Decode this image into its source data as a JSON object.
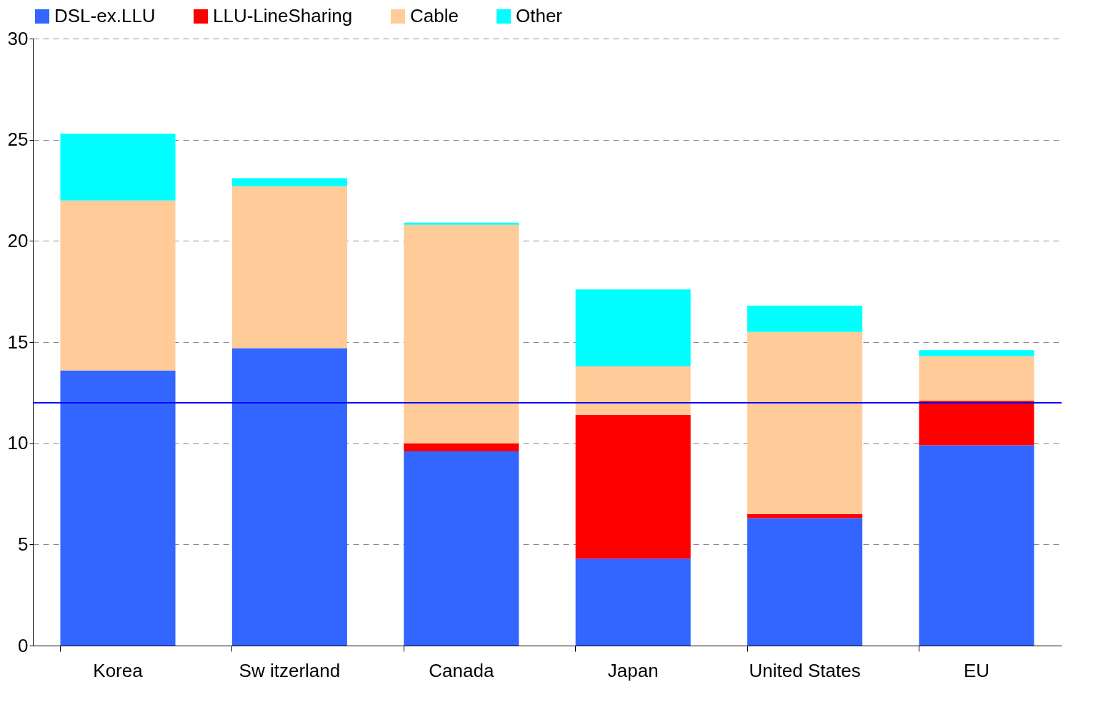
{
  "chart_data": {
    "type": "bar",
    "stacked": true,
    "categories": [
      "Korea",
      "Sw itzerland",
      "Canada",
      "Japan",
      "United States",
      "EU"
    ],
    "series": [
      {
        "name": "DSL-ex.LLU",
        "color": "#3366ff",
        "values": [
          13.6,
          14.7,
          9.6,
          4.3,
          6.3,
          9.9
        ]
      },
      {
        "name": "LLU-LineSharing",
        "color": "#ff0000",
        "values": [
          0,
          0,
          0.4,
          7.1,
          0.2,
          2.2
        ]
      },
      {
        "name": "Cable",
        "color": "#ffcc99",
        "values": [
          8.4,
          8.0,
          10.8,
          2.4,
          9.0,
          2.2
        ]
      },
      {
        "name": "Other",
        "color": "#00ffff",
        "values": [
          3.3,
          0.4,
          0.1,
          3.8,
          1.3,
          0.3
        ]
      }
    ],
    "ylim": [
      0,
      30
    ],
    "yticks": [
      0,
      5,
      10,
      15,
      20,
      25,
      30
    ],
    "grid": "y",
    "legend": "top",
    "ref_lines": [
      {
        "axis": "y",
        "value": 12,
        "color": "#0000ff"
      }
    ]
  }
}
